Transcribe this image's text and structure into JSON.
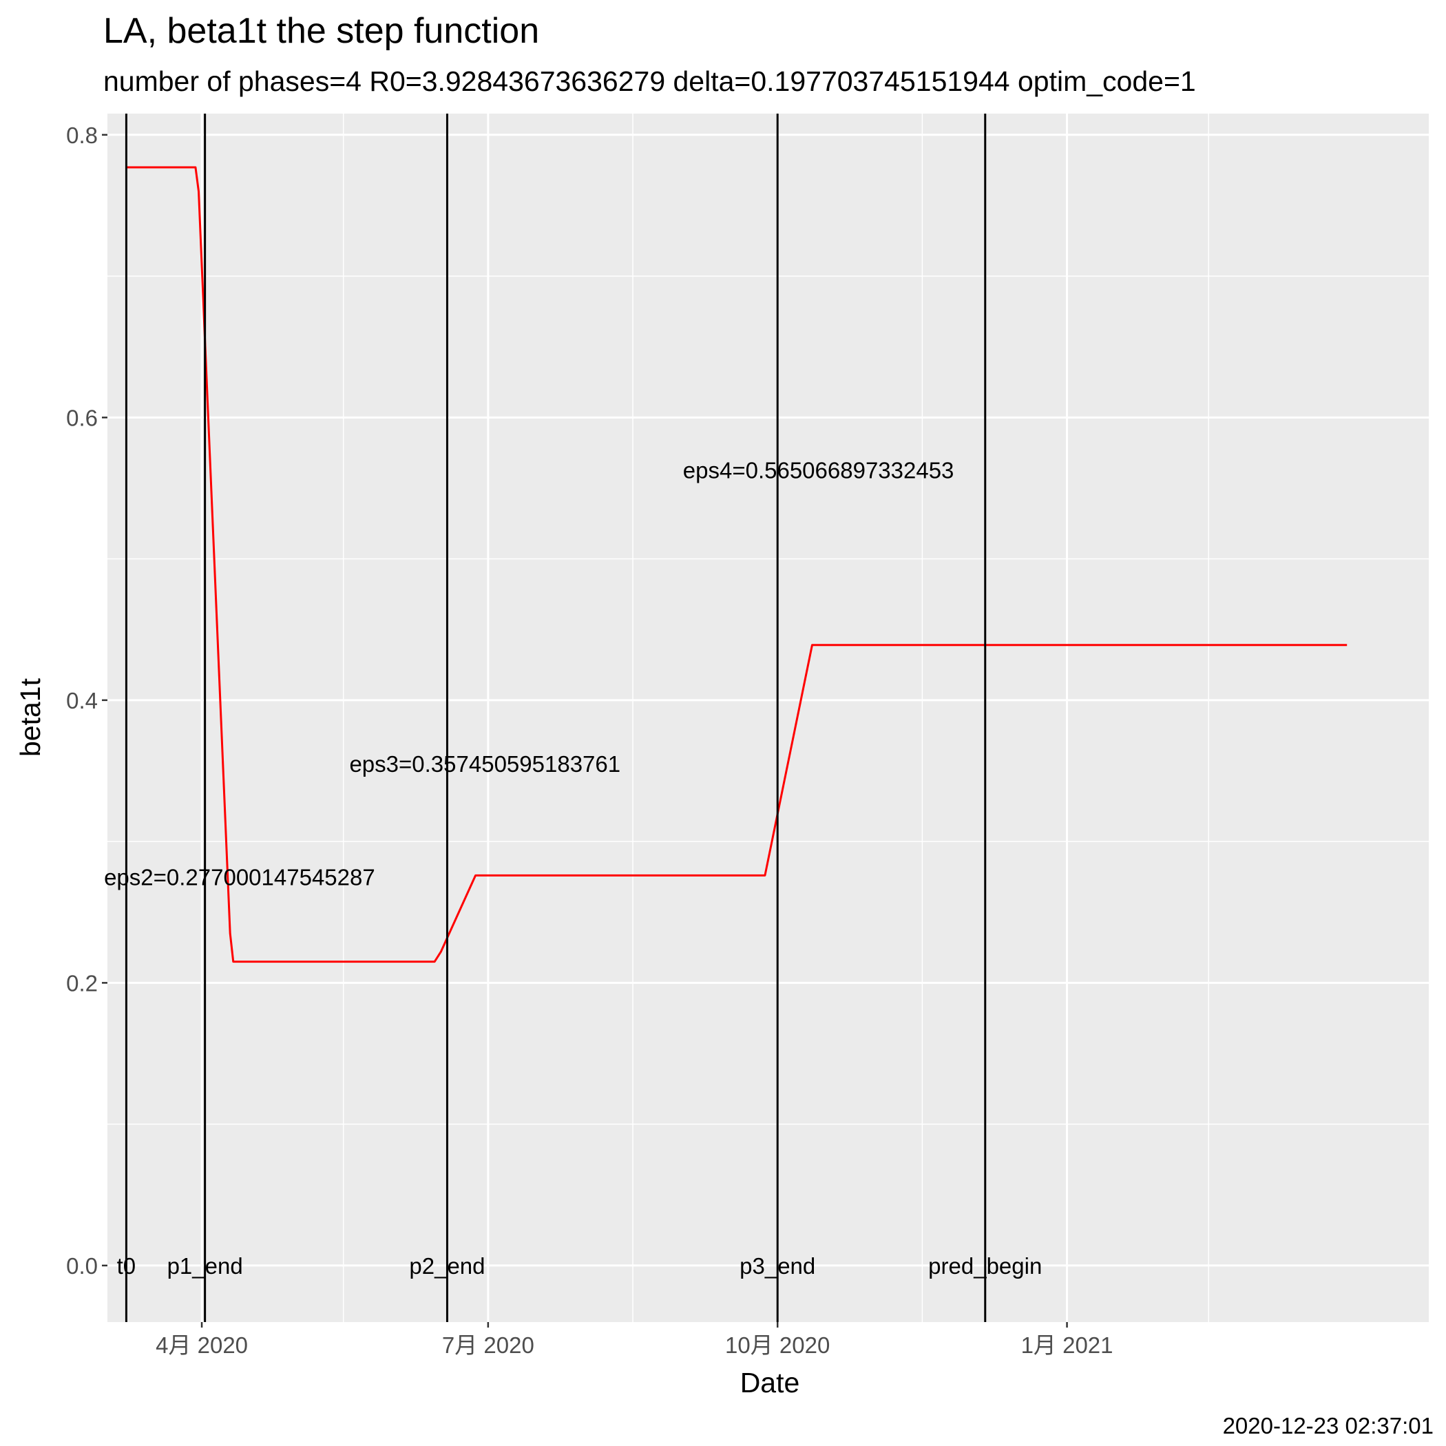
{
  "chart_data": {
    "type": "line",
    "title": "LA, beta1t the step function",
    "subtitle": "number of phases=4   R0=3.92843673636279   delta=0.197703745151944   optim_code=1",
    "xlabel": "Date",
    "ylabel": "beta1t",
    "caption": "2020-12-23 02:37:01",
    "xlim": [
      "2020-03-02",
      "2021-04-26"
    ],
    "ylim": [
      -0.04,
      0.815
    ],
    "grid": true,
    "x_ticks": [
      {
        "date": "2020-04-01",
        "label": "4月 2020"
      },
      {
        "date": "2020-07-01",
        "label": "7月 2020"
      },
      {
        "date": "2020-10-01",
        "label": "10月 2020"
      },
      {
        "date": "2021-01-01",
        "label": "1月 2021"
      }
    ],
    "x_minor_ticks": [
      "2020-02-15",
      "2020-05-16",
      "2020-08-16",
      "2020-11-16",
      "2021-02-15"
    ],
    "y_ticks": [
      {
        "value": 0.0,
        "label": "0.0"
      },
      {
        "value": 0.2,
        "label": "0.2"
      },
      {
        "value": 0.4,
        "label": "0.4"
      },
      {
        "value": 0.6,
        "label": "0.6"
      },
      {
        "value": 0.8,
        "label": "0.8"
      }
    ],
    "y_minor_ticks": [
      0.1,
      0.3,
      0.5,
      0.7
    ],
    "series": [
      {
        "color": "#ff0000",
        "points": [
          {
            "x": "2020-03-08",
            "y": 0.777
          },
          {
            "x": "2020-03-30",
            "y": 0.777
          },
          {
            "x": "2020-03-31",
            "y": 0.76
          },
          {
            "x": "2020-04-10",
            "y": 0.235
          },
          {
            "x": "2020-04-11",
            "y": 0.215
          },
          {
            "x": "2020-06-14",
            "y": 0.215
          },
          {
            "x": "2020-06-16",
            "y": 0.222
          },
          {
            "x": "2020-06-27",
            "y": 0.276
          },
          {
            "x": "2020-09-27",
            "y": 0.276
          },
          {
            "x": "2020-10-12",
            "y": 0.439
          },
          {
            "x": "2021-03-31",
            "y": 0.439
          }
        ]
      }
    ],
    "vertical_lines": [
      {
        "date": "2020-03-08",
        "label": "t0"
      },
      {
        "date": "2020-04-02",
        "label": "p1_end"
      },
      {
        "date": "2020-06-18",
        "label": "p2_end"
      },
      {
        "date": "2020-10-01",
        "label": "p3_end"
      },
      {
        "date": "2020-12-06",
        "label": "pred_begin"
      }
    ],
    "annotations": [
      {
        "text": "eps2=0.277000147545287",
        "date": "2020-04-13",
        "y": 0.275
      },
      {
        "text": "eps3=0.357450595183761",
        "date": "2020-06-30",
        "y": 0.355
      },
      {
        "text": "eps4=0.565066897332453",
        "date": "2020-10-14",
        "y": 0.563
      }
    ]
  }
}
